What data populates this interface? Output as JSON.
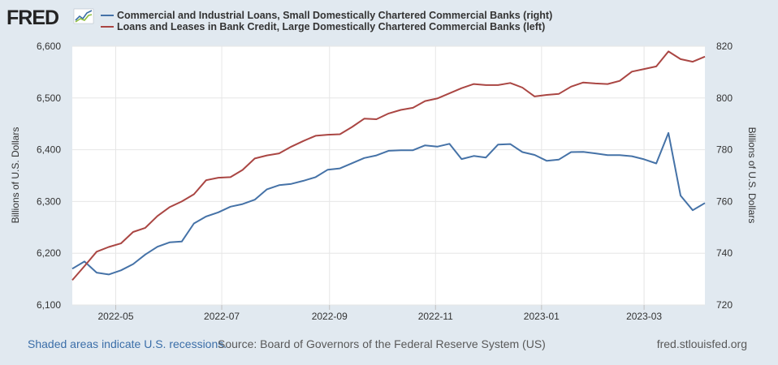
{
  "logo": {
    "text": "FRED"
  },
  "chart_data": {
    "type": "line",
    "x": [
      "2022-04-06",
      "2022-04-13",
      "2022-04-20",
      "2022-04-27",
      "2022-05-04",
      "2022-05-11",
      "2022-05-18",
      "2022-05-25",
      "2022-06-01",
      "2022-06-08",
      "2022-06-15",
      "2022-06-22",
      "2022-06-29",
      "2022-07-06",
      "2022-07-13",
      "2022-07-20",
      "2022-07-27",
      "2022-08-03",
      "2022-08-10",
      "2022-08-17",
      "2022-08-24",
      "2022-08-31",
      "2022-09-07",
      "2022-09-14",
      "2022-09-21",
      "2022-09-28",
      "2022-10-05",
      "2022-10-12",
      "2022-10-19",
      "2022-10-26",
      "2022-11-02",
      "2022-11-09",
      "2022-11-16",
      "2022-11-23",
      "2022-11-30",
      "2022-12-07",
      "2022-12-14",
      "2022-12-21",
      "2022-12-28",
      "2023-01-04",
      "2023-01-11",
      "2023-01-18",
      "2023-01-25",
      "2023-02-01",
      "2023-02-08",
      "2023-02-15",
      "2023-02-22",
      "2023-03-01",
      "2023-03-08",
      "2023-03-15",
      "2023-03-22",
      "2023-03-29",
      "2023-04-05"
    ],
    "series": [
      {
        "name": "Commercial and Industrial Loans, Small Domestically Chartered Commercial Banks (right)",
        "axis": "right",
        "color": "#4572a7",
        "values": [
          734.0,
          736.8,
          732.5,
          731.8,
          733.4,
          735.8,
          739.5,
          742.5,
          744.2,
          744.5,
          751.5,
          754.2,
          755.8,
          758.0,
          759.0,
          760.7,
          764.7,
          766.3,
          766.8,
          768.0,
          769.4,
          772.3,
          772.8,
          774.8,
          776.8,
          777.8,
          779.6,
          779.8,
          779.8,
          781.7,
          781.2,
          782.3,
          776.4,
          777.6,
          777.0,
          782.0,
          782.2,
          779.1,
          778.0,
          775.7,
          776.2,
          779.1,
          779.2,
          778.6,
          777.9,
          777.9,
          777.5,
          776.3,
          774.7,
          786.5,
          762.3,
          756.6,
          759.4
        ]
      },
      {
        "name": "Loans and Leases in Bank Credit, Large Domestically Chartered Commercial Banks (left)",
        "axis": "left",
        "color": "#aa4643",
        "values": [
          6148,
          6175,
          6203,
          6212,
          6219,
          6241,
          6249,
          6272,
          6289,
          6300,
          6314,
          6341,
          6346,
          6347,
          6361,
          6383,
          6389,
          6393,
          6406,
          6417,
          6427,
          6429,
          6430,
          6444,
          6460,
          6459,
          6470,
          6477,
          6481,
          6494,
          6499,
          6509,
          6519,
          6527,
          6525,
          6525,
          6529,
          6520,
          6503,
          6506,
          6508,
          6522,
          6530,
          6528,
          6527,
          6533,
          6551,
          6556,
          6561,
          6590,
          6575,
          6570,
          6580
        ]
      }
    ],
    "left_axis": {
      "title": "Billions of U.S. Dollars",
      "min": 6100,
      "max": 6600,
      "ticks": [
        "6,100",
        "6,200",
        "6,300",
        "6,400",
        "6,500",
        "6,600"
      ]
    },
    "right_axis": {
      "title": "Billions of U.S. Dollars",
      "min": 720,
      "max": 820,
      "ticks": [
        "720",
        "740",
        "760",
        "780",
        "800",
        "820"
      ]
    },
    "x_ticks": [
      {
        "date": "2022-05-01",
        "label": "2022-05"
      },
      {
        "date": "2022-07-01",
        "label": "2022-07"
      },
      {
        "date": "2022-09-01",
        "label": "2022-09"
      },
      {
        "date": "2022-11-01",
        "label": "2022-11"
      },
      {
        "date": "2023-01-01",
        "label": "2023-01"
      },
      {
        "date": "2023-03-01",
        "label": "2023-03"
      }
    ],
    "x_range": [
      "2022-04-06",
      "2023-04-05"
    ],
    "grid": true,
    "legend_position": "top-left"
  },
  "footer": {
    "recessions": "Shaded areas indicate U.S. recessions.",
    "source": "Source: Board of Governors of the Federal Reserve System (US)",
    "url": "fred.stlouisfed.org"
  }
}
